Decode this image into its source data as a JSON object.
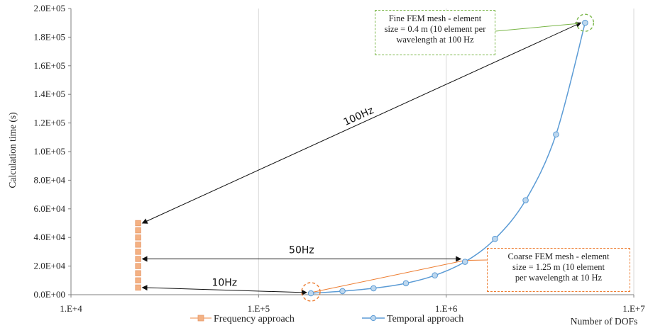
{
  "chart_data": {
    "type": "scatter",
    "x_scale": "log",
    "xlim": [
      10000,
      10000000
    ],
    "ylim": [
      0,
      200000
    ],
    "xlabel": "Number of DOFs",
    "ylabel": "Calculation time (s)",
    "x_ticks": [
      "1.E+4",
      "1.E+5",
      "1.E+6",
      "1.E+7"
    ],
    "y_ticks": [
      "0.0E+00",
      "2.0E+04",
      "4.0E+04",
      "6.0E+04",
      "8.0E+04",
      "1.0E+05",
      "1.2E+05",
      "1.4E+05",
      "1.6E+05",
      "1.8E+05",
      "2.0E+05"
    ],
    "grid": "vertical major lines only",
    "legend_position": "bottom-center",
    "series": [
      {
        "name": "Frequency approach",
        "color": "#f4b183",
        "marker": "square",
        "points": [
          [
            22800,
            5000
          ],
          [
            22800,
            10000
          ],
          [
            22800,
            15000
          ],
          [
            22800,
            20000
          ],
          [
            22800,
            25000
          ],
          [
            22800,
            30000
          ],
          [
            22800,
            35000
          ],
          [
            22800,
            40000
          ],
          [
            22800,
            45000
          ],
          [
            22800,
            50000
          ]
        ]
      },
      {
        "name": "Temporal approach",
        "color": "#5b9bd5",
        "marker": "circle",
        "points": [
          [
            190000,
            1000
          ],
          [
            280000,
            2500
          ],
          [
            410000,
            4500
          ],
          [
            610000,
            8000
          ],
          [
            870000,
            13500
          ],
          [
            1260000,
            23000
          ],
          [
            1820000,
            39000
          ],
          [
            2650000,
            66000
          ],
          [
            3850000,
            112000
          ],
          [
            5500000,
            190000
          ]
        ]
      }
    ],
    "arrows": [
      {
        "label": "10Hz",
        "from": [
          22800,
          5000
        ],
        "to": [
          190000,
          1500
        ]
      },
      {
        "label": "50Hz",
        "from": [
          22800,
          25000
        ],
        "to": [
          1260000,
          25000
        ]
      },
      {
        "label": "100Hz",
        "from": [
          22800,
          50000
        ],
        "to": [
          5500000,
          190000
        ]
      }
    ],
    "annotations": {
      "fine": {
        "lines": [
          "Fine FEM mesh - element",
          "size = 0.4 m (10 element per",
          "wavelength at 100 Hz"
        ],
        "target": [
          5500000,
          190000
        ],
        "color": "#7ab648"
      },
      "coarse": {
        "lines": [
          "Coarse FEM mesh - element",
          "size = 1.25 m (10 element",
          "per wavelength at 10 Hz"
        ],
        "target": [
          190000,
          1500
        ],
        "color": "#ed7d31"
      }
    }
  }
}
